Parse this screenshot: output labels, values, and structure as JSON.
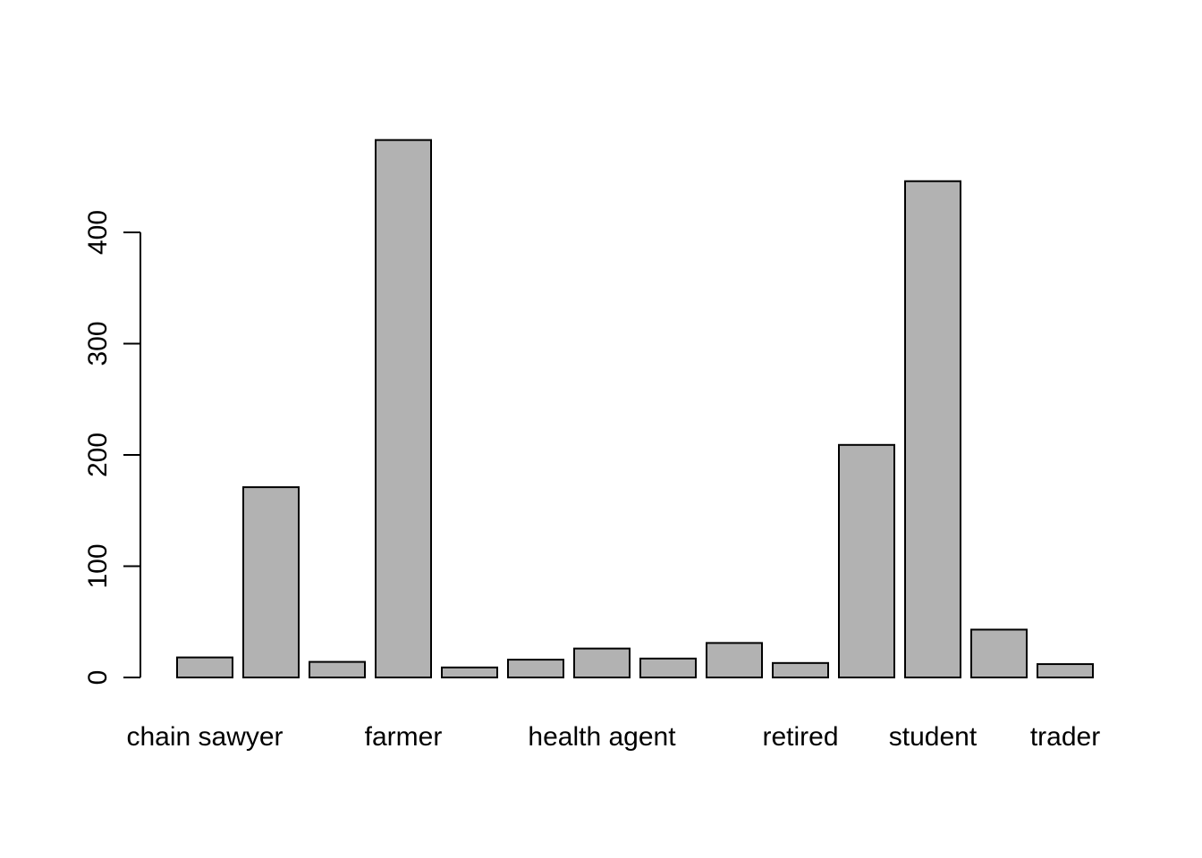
{
  "chart_data": {
    "type": "bar",
    "title": "",
    "xlabel": "",
    "ylabel": "",
    "categories": [
      "chain sawyer",
      "",
      "",
      "farmer",
      "",
      "",
      "health agent",
      "",
      "",
      "retired",
      "",
      "student",
      "",
      "trader"
    ],
    "values": [
      18,
      171,
      14,
      483,
      9,
      16,
      26,
      17,
      31,
      13,
      209,
      446,
      43,
      12
    ],
    "yticks": [
      0,
      100,
      200,
      300,
      400
    ],
    "ylim": [
      0,
      483
    ],
    "bar_fill": "#b2b2b2",
    "bar_stroke": "#000000",
    "grid": false,
    "legend": "none"
  }
}
